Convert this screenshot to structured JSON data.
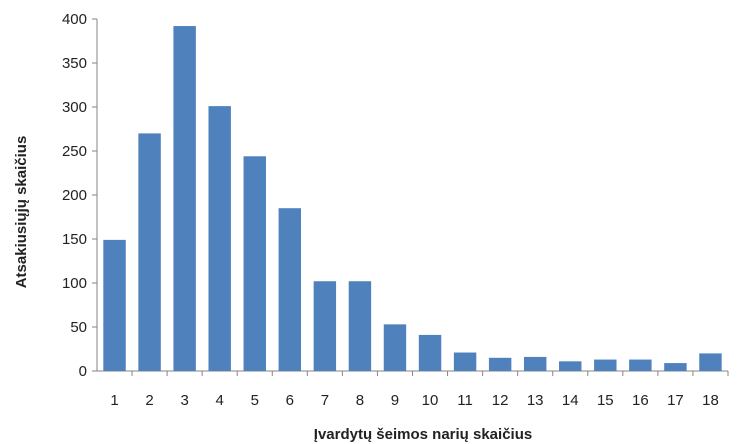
{
  "chart_data": {
    "type": "bar",
    "categories": [
      "1",
      "2",
      "3",
      "4",
      "5",
      "6",
      "7",
      "8",
      "9",
      "10",
      "11",
      "12",
      "13",
      "14",
      "15",
      "16",
      "17",
      "18"
    ],
    "values": [
      149,
      270,
      392,
      301,
      244,
      185,
      102,
      102,
      53,
      41,
      21,
      15,
      16,
      11,
      13,
      13,
      9,
      20
    ],
    "title": "",
    "xlabel": "Įvardytų šeimos narių skaičius",
    "ylabel": "Atsakiusiųjų skaičius",
    "ylim": [
      0,
      400
    ],
    "yticks": [
      "0",
      "50",
      "100",
      "150",
      "200",
      "250",
      "300",
      "350",
      "400"
    ],
    "grid": false,
    "bar_color": "#4f81bd",
    "axis_color": "#868686"
  }
}
